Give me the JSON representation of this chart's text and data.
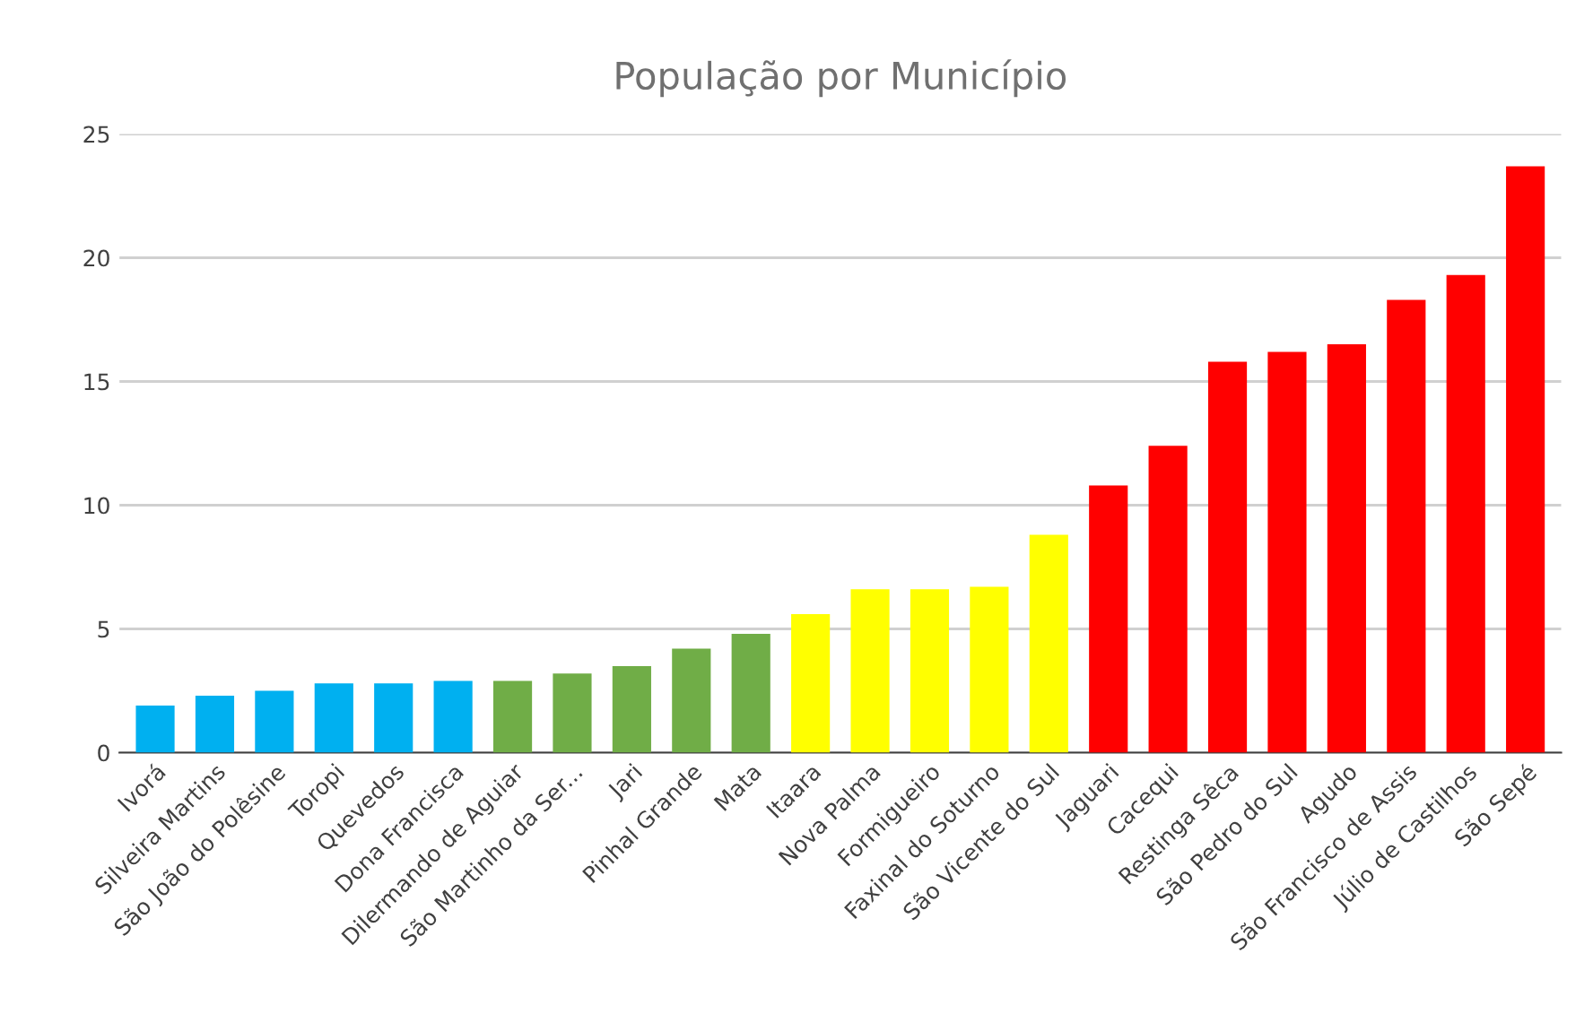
{
  "chart_data": {
    "type": "bar",
    "title": "População por Município",
    "categories": [
      "Ivorá",
      "Silveira Martins",
      "São João do Polêsine",
      "Toropi",
      "Quevedos",
      "Dona Francisca",
      "Dilermando de Aguiar",
      "São Martinho da Ser...",
      "Jari",
      "Pinhal Grande",
      "Mata",
      "Itaara",
      "Nova Palma",
      "Formigueiro",
      "Faxinal do Soturno",
      "São Vicente do Sul",
      "Jaguari",
      "Cacequi",
      "Restinga Sêca",
      "São Pedro do Sul",
      "Agudo",
      "São Francisco de Assis",
      "Júlio de Castilhos",
      "São Sepé"
    ],
    "values": [
      1.9,
      2.3,
      2.5,
      2.8,
      2.8,
      2.9,
      2.9,
      3.2,
      3.5,
      4.2,
      4.8,
      5.6,
      6.6,
      6.6,
      6.7,
      8.8,
      10.8,
      12.4,
      15.8,
      16.2,
      16.5,
      18.3,
      19.3,
      23.7
    ],
    "colors": [
      "#00b0f0",
      "#00b0f0",
      "#00b0f0",
      "#00b0f0",
      "#00b0f0",
      "#00b0f0",
      "#70ad47",
      "#70ad47",
      "#70ad47",
      "#70ad47",
      "#70ad47",
      "#ffff00",
      "#ffff00",
      "#ffff00",
      "#ffff00",
      "#ffff00",
      "#ff0000",
      "#ff0000",
      "#ff0000",
      "#ff0000",
      "#ff0000",
      "#ff0000",
      "#ff0000",
      "#ff0000"
    ],
    "ylim": [
      0,
      25
    ],
    "yticks": [
      0,
      5,
      10,
      15,
      20,
      25
    ],
    "grid": "y"
  }
}
